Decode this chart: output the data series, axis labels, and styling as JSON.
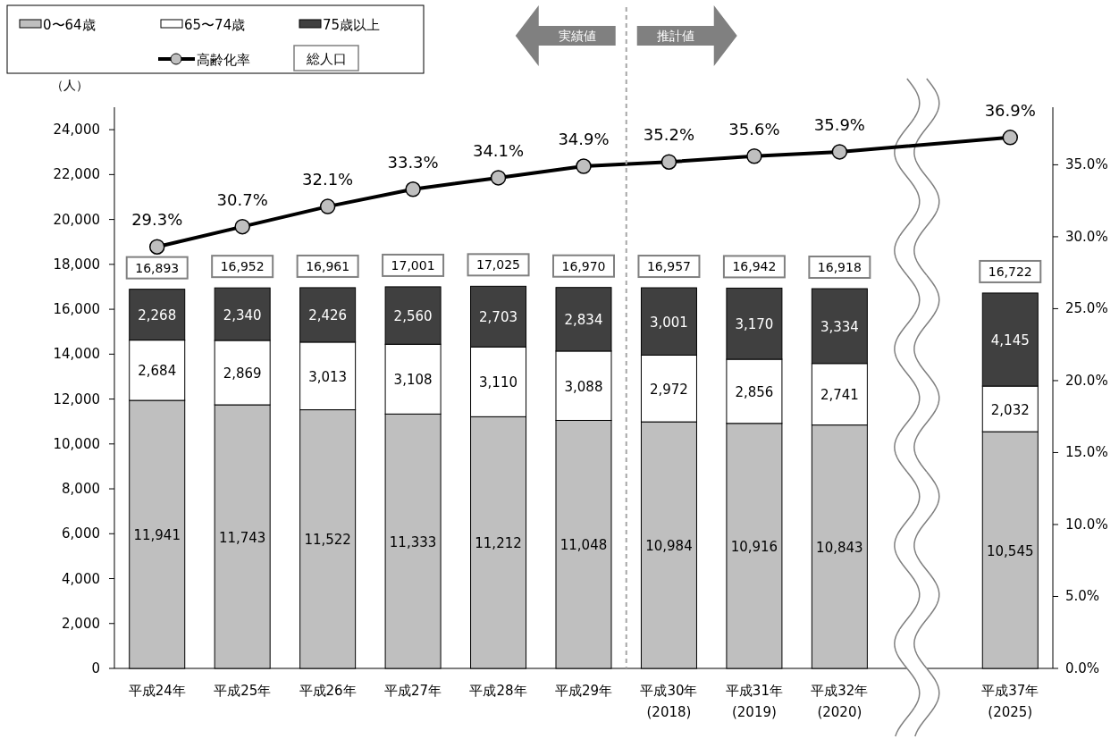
{
  "chart_data": {
    "type": "bar",
    "stacked": true,
    "ylabel": "（人）",
    "categories": [
      "平成24年",
      "平成25年",
      "平成26年",
      "平成27年",
      "平成28年",
      "平成29年",
      "平成30年\n(2018)",
      "平成31年\n(2019)",
      "平成32年\n(2020)",
      null,
      "平成37年\n(2025)"
    ],
    "series": [
      {
        "name": "0〜64歳",
        "color": "#bfbfbf",
        "values": [
          11941,
          11743,
          11522,
          11333,
          11212,
          11048,
          10984,
          10916,
          10843,
          null,
          10545
        ],
        "value_labels": [
          "11,941",
          "11,743",
          "11,522",
          "11,333",
          "11,212",
          "11,048",
          "10,984",
          "10,916",
          "10,843",
          null,
          "10,545"
        ]
      },
      {
        "name": "65〜74歳",
        "color": "#ffffff",
        "values": [
          2684,
          2869,
          3013,
          3108,
          3110,
          3088,
          2972,
          2856,
          2741,
          null,
          2032
        ],
        "value_labels": [
          "2,684",
          "2,869",
          "3,013",
          "3,108",
          "3,110",
          "3,088",
          "2,972",
          "2,856",
          "2,741",
          null,
          "2,032"
        ]
      },
      {
        "name": "75歳以上",
        "color": "#404040",
        "values": [
          2268,
          2340,
          2426,
          2560,
          2703,
          2834,
          3001,
          3170,
          3334,
          null,
          4145
        ],
        "value_labels": [
          "2,268",
          "2,340",
          "2,426",
          "2,560",
          "2,703",
          "2,834",
          "3,001",
          "3,170",
          "3,334",
          null,
          "4,145"
        ]
      },
      {
        "name": "高齢化率",
        "type": "line",
        "axis": "y2",
        "color": "#000000",
        "marker": "circle",
        "values": [
          29.3,
          30.7,
          32.1,
          33.3,
          34.1,
          34.9,
          35.2,
          35.6,
          35.9,
          null,
          36.9
        ],
        "value_labels": [
          "29.3%",
          "30.7%",
          "32.1%",
          "33.3%",
          "34.1%",
          "34.9%",
          "35.2%",
          "35.6%",
          "35.9%",
          null,
          "36.9%"
        ]
      }
    ],
    "totals": [
      "16,893",
      "16,952",
      "16,961",
      "17,001",
      "17,025",
      "16,970",
      "16,957",
      "16,942",
      "16,918",
      null,
      "16,722"
    ],
    "ylim": [
      0,
      25000
    ],
    "yticks": [
      {
        "value": 0,
        "label": "0"
      },
      {
        "value": 2000,
        "label": "2,000"
      },
      {
        "value": 4000,
        "label": "4,000"
      },
      {
        "value": 6000,
        "label": "6,000"
      },
      {
        "value": 8000,
        "label": "8,000"
      },
      {
        "value": 10000,
        "label": "10,000"
      },
      {
        "value": 12000,
        "label": "12,000"
      },
      {
        "value": 14000,
        "label": "14,000"
      },
      {
        "value": 16000,
        "label": "16,000"
      },
      {
        "value": 18000,
        "label": "18,000"
      },
      {
        "value": 20000,
        "label": "20,000"
      },
      {
        "value": 22000,
        "label": "22,000"
      },
      {
        "value": 24000,
        "label": "24,000"
      }
    ],
    "y2lim": [
      0,
      39
    ],
    "y2ticks": [
      {
        "value": 0,
        "label": "0.0%"
      },
      {
        "value": 5,
        "label": "5.0%"
      },
      {
        "value": 10,
        "label": "10.0%"
      },
      {
        "value": 15,
        "label": "15.0%"
      },
      {
        "value": 20,
        "label": "20.0%"
      },
      {
        "value": 25,
        "label": "25.0%"
      },
      {
        "value": 30,
        "label": "30.0%"
      },
      {
        "value": 35,
        "label": "35.0%"
      }
    ],
    "annotations": [
      "実績値",
      "推計値",
      "総人口"
    ],
    "legend": "top left",
    "grid": false
  }
}
